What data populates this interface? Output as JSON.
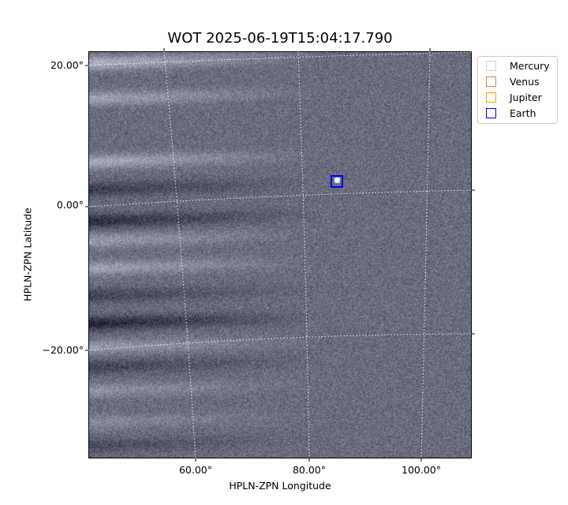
{
  "chart_data": {
    "type": "heatmap",
    "title": "WOT 2025-06-19T15:04:17.790",
    "xlabel": "HPLN-ZPN Longitude",
    "ylabel": "HPLN-ZPN Latitude",
    "x_ticks": [
      "60.00°",
      "80.00°",
      "100.00°"
    ],
    "y_ticks": [
      "20.00°",
      "0.00°",
      "−20.00°"
    ],
    "colormap": "bone-like grayscale",
    "grid": "on (dotted white coordinate grid)",
    "legend_placement": "outside-top-right",
    "legend": [
      {
        "name": "Mercury",
        "color": "#d3d3d3"
      },
      {
        "name": "Venus",
        "color": "#cd853f"
      },
      {
        "name": "Jupiter",
        "color": "#ffa500"
      },
      {
        "name": "Earth",
        "color": "#0000ff"
      }
    ],
    "markers": [
      {
        "name": "Earth",
        "color": "#0000ff",
        "lon": 85,
        "lat": 3.5
      }
    ]
  }
}
